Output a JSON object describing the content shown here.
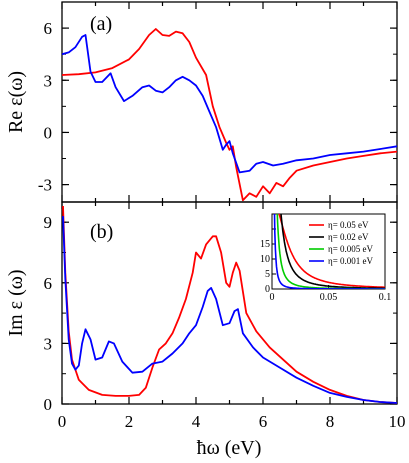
{
  "figure": {
    "x_axis_label": "ħω (eV)",
    "x_ticks": [
      "0",
      "2",
      "4",
      "6",
      "8",
      "10"
    ]
  },
  "chart_data": [
    {
      "panel": "(a)",
      "type": "line",
      "ylabel": "Re ε(ω)",
      "xlabel": "ħω (eV)",
      "xlim": [
        0,
        10
      ],
      "ylim": [
        -4,
        7.5
      ],
      "yticks": [
        -3,
        0,
        3,
        6
      ],
      "ytick_labels": [
        "-3",
        "0",
        "3",
        "6"
      ],
      "grid": false,
      "series": [
        {
          "color": "#ff0000",
          "points": [
            [
              0,
              3.3
            ],
            [
              0.5,
              3.35
            ],
            [
              1,
              3.45
            ],
            [
              1.5,
              3.7
            ],
            [
              2,
              4.2
            ],
            [
              2.3,
              4.8
            ],
            [
              2.6,
              5.6
            ],
            [
              2.8,
              5.95
            ],
            [
              3.0,
              5.6
            ],
            [
              3.2,
              5.55
            ],
            [
              3.4,
              5.8
            ],
            [
              3.6,
              5.7
            ],
            [
              3.8,
              5.2
            ],
            [
              4.0,
              4.3
            ],
            [
              4.3,
              3.3
            ],
            [
              4.5,
              1.5
            ],
            [
              4.7,
              0.3
            ],
            [
              4.9,
              -0.6
            ],
            [
              5.0,
              -1.0
            ],
            [
              5.1,
              -0.8
            ],
            [
              5.2,
              -2.0
            ],
            [
              5.4,
              -3.9
            ],
            [
              5.6,
              -3.5
            ],
            [
              5.8,
              -3.7
            ],
            [
              6.0,
              -3.1
            ],
            [
              6.2,
              -3.5
            ],
            [
              6.4,
              -2.9
            ],
            [
              6.6,
              -3.1
            ],
            [
              6.8,
              -2.6
            ],
            [
              7.0,
              -2.2
            ],
            [
              7.5,
              -1.9
            ],
            [
              8,
              -1.7
            ],
            [
              8.5,
              -1.5
            ],
            [
              9,
              -1.35
            ],
            [
              9.5,
              -1.2
            ],
            [
              10,
              -1.1
            ]
          ]
        },
        {
          "color": "#0000ff",
          "points": [
            [
              0,
              4.5
            ],
            [
              0.2,
              4.6
            ],
            [
              0.4,
              4.9
            ],
            [
              0.6,
              5.5
            ],
            [
              0.7,
              5.6
            ],
            [
              0.85,
              3.5
            ],
            [
              1.0,
              2.9
            ],
            [
              1.2,
              2.9
            ],
            [
              1.45,
              3.4
            ],
            [
              1.6,
              2.6
            ],
            [
              1.85,
              1.8
            ],
            [
              2.1,
              2.1
            ],
            [
              2.4,
              2.6
            ],
            [
              2.6,
              2.7
            ],
            [
              2.8,
              2.4
            ],
            [
              3.0,
              2.3
            ],
            [
              3.2,
              2.6
            ],
            [
              3.4,
              3.0
            ],
            [
              3.6,
              3.2
            ],
            [
              3.8,
              3.0
            ],
            [
              4.0,
              2.7
            ],
            [
              4.2,
              2.1
            ],
            [
              4.4,
              1.2
            ],
            [
              4.6,
              0.3
            ],
            [
              4.8,
              -1.0
            ],
            [
              4.9,
              -0.7
            ],
            [
              5.0,
              -0.5
            ],
            [
              5.1,
              -1.2
            ],
            [
              5.3,
              -2.3
            ],
            [
              5.6,
              -2.2
            ],
            [
              5.8,
              -1.8
            ],
            [
              6.0,
              -1.7
            ],
            [
              6.3,
              -1.9
            ],
            [
              6.6,
              -1.8
            ],
            [
              7,
              -1.6
            ],
            [
              7.5,
              -1.5
            ],
            [
              8,
              -1.3
            ],
            [
              8.5,
              -1.2
            ],
            [
              9,
              -1.1
            ],
            [
              9.5,
              -0.95
            ],
            [
              10,
              -0.8
            ]
          ]
        }
      ]
    },
    {
      "panel": "(b)",
      "type": "line",
      "ylabel": "Im ε (ω)",
      "xlabel": "ħω (eV)",
      "xlim": [
        0,
        10
      ],
      "ylim": [
        0,
        10
      ],
      "yticks": [
        0,
        3,
        6,
        9
      ],
      "ytick_labels": [
        "0",
        "3",
        "6",
        "9"
      ],
      "grid": false,
      "series": [
        {
          "color": "#ff0000",
          "points": [
            [
              0.03,
              9.8
            ],
            [
              0.1,
              6.5
            ],
            [
              0.2,
              3.6
            ],
            [
              0.3,
              2.2
            ],
            [
              0.5,
              1.2
            ],
            [
              0.8,
              0.7
            ],
            [
              1.2,
              0.45
            ],
            [
              1.6,
              0.4
            ],
            [
              2.0,
              0.4
            ],
            [
              2.3,
              0.45
            ],
            [
              2.5,
              0.8
            ],
            [
              2.7,
              1.8
            ],
            [
              2.9,
              2.7
            ],
            [
              3.1,
              3.0
            ],
            [
              3.3,
              3.5
            ],
            [
              3.5,
              4.3
            ],
            [
              3.7,
              5.2
            ],
            [
              3.9,
              6.5
            ],
            [
              4.0,
              7.5
            ],
            [
              4.15,
              7.2
            ],
            [
              4.3,
              7.9
            ],
            [
              4.5,
              8.3
            ],
            [
              4.6,
              8.3
            ],
            [
              4.75,
              7.5
            ],
            [
              4.9,
              6.0
            ],
            [
              5.0,
              5.8
            ],
            [
              5.1,
              6.5
            ],
            [
              5.2,
              7.0
            ],
            [
              5.3,
              6.6
            ],
            [
              5.5,
              4.5
            ],
            [
              5.8,
              3.6
            ],
            [
              6.2,
              2.8
            ],
            [
              6.6,
              2.2
            ],
            [
              7,
              1.6
            ],
            [
              7.5,
              1.1
            ],
            [
              8,
              0.7
            ],
            [
              8.5,
              0.4
            ],
            [
              9,
              0.2
            ],
            [
              9.5,
              0.1
            ],
            [
              10,
              0.05
            ]
          ]
        },
        {
          "color": "#0000ff",
          "points": [
            [
              0.03,
              9.3
            ],
            [
              0.1,
              6.2
            ],
            [
              0.2,
              3.2
            ],
            [
              0.3,
              2.0
            ],
            [
              0.4,
              1.7
            ],
            [
              0.5,
              1.9
            ],
            [
              0.6,
              3.0
            ],
            [
              0.7,
              3.7
            ],
            [
              0.85,
              3.2
            ],
            [
              1.0,
              2.2
            ],
            [
              1.2,
              2.3
            ],
            [
              1.4,
              3.1
            ],
            [
              1.55,
              3.0
            ],
            [
              1.8,
              2.1
            ],
            [
              2.1,
              1.55
            ],
            [
              2.4,
              1.6
            ],
            [
              2.7,
              2.0
            ],
            [
              3.0,
              2.1
            ],
            [
              3.3,
              2.5
            ],
            [
              3.6,
              3.0
            ],
            [
              3.8,
              3.5
            ],
            [
              4.0,
              3.9
            ],
            [
              4.2,
              4.8
            ],
            [
              4.35,
              5.6
            ],
            [
              4.45,
              5.75
            ],
            [
              4.6,
              5.2
            ],
            [
              4.8,
              3.9
            ],
            [
              5.0,
              4.0
            ],
            [
              5.15,
              4.6
            ],
            [
              5.25,
              4.7
            ],
            [
              5.4,
              3.5
            ],
            [
              5.7,
              2.8
            ],
            [
              6.0,
              2.3
            ],
            [
              6.5,
              1.8
            ],
            [
              7,
              1.3
            ],
            [
              7.5,
              0.9
            ],
            [
              8,
              0.55
            ],
            [
              8.5,
              0.35
            ],
            [
              9,
              0.2
            ],
            [
              9.5,
              0.1
            ],
            [
              10,
              0.05
            ]
          ]
        }
      ]
    }
  ],
  "inset": {
    "xlim": [
      0,
      0.1
    ],
    "ylim": [
      0,
      25
    ],
    "x_ticks": [
      "0",
      "0.05",
      "0.1"
    ],
    "y_ticks": [
      "0",
      "5",
      "10",
      "15",
      "20"
    ],
    "legend": [
      {
        "label": "η= 0.05 eV",
        "color": "#ff0000",
        "eta": 0.05
      },
      {
        "label": "η= 0.02 eV",
        "color": "#000000",
        "eta": 0.02
      },
      {
        "label": "η= 0.005 eV",
        "color": "#00cc00",
        "eta": 0.005
      },
      {
        "label": "η= 0.001 eV",
        "color": "#0000ff",
        "eta": 0.001
      }
    ]
  }
}
